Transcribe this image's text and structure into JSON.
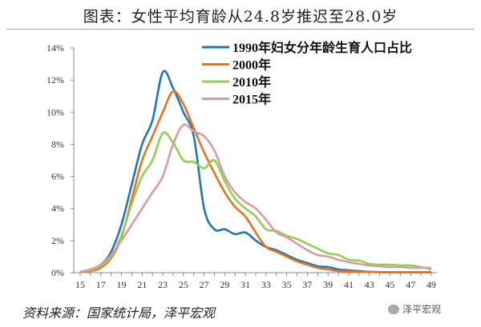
{
  "title": "图表：女性平均育龄从24.8岁推迟至28.0岁",
  "source": "资料来源：国家统计局，泽平宏观",
  "watermark": "泽平宏观",
  "chart_data": {
    "type": "line",
    "xlabel": "",
    "ylabel": "",
    "x": [
      15,
      16,
      17,
      18,
      19,
      20,
      21,
      22,
      23,
      24,
      25,
      26,
      27,
      28,
      29,
      30,
      31,
      32,
      33,
      34,
      35,
      36,
      37,
      38,
      39,
      40,
      41,
      42,
      43,
      44,
      45,
      46,
      47,
      48,
      49
    ],
    "x_tick_labels": [
      "15",
      "17",
      "19",
      "21",
      "23",
      "25",
      "27",
      "29",
      "31",
      "33",
      "35",
      "37",
      "39",
      "41",
      "43",
      "45",
      "47",
      "49"
    ],
    "y_tick_labels": [
      "0%",
      "2%",
      "4%",
      "6%",
      "8%",
      "10%",
      "12%",
      "14%"
    ],
    "ylim": [
      0,
      14
    ],
    "grid": false,
    "legend": "top-right",
    "series": [
      {
        "name": "1990年妇女分年龄生育人口占比",
        "color": "#1f77b4",
        "values": [
          0.05,
          0.2,
          0.5,
          1.3,
          3,
          5.5,
          8,
          9.5,
          12.5,
          11.5,
          10,
          8.5,
          4,
          2.7,
          2.7,
          2.4,
          2.5,
          2,
          1.6,
          1.4,
          1.1,
          0.8,
          0.6,
          0.4,
          0.35,
          0.2,
          0.15,
          0.1,
          0.05,
          0.03,
          0.02,
          0.02,
          0.02,
          0.02,
          0.02
        ]
      },
      {
        "name": "2000年",
        "color": "#e8731e",
        "values": [
          0.02,
          0.1,
          0.3,
          0.9,
          2.2,
          4.6,
          7,
          8.5,
          10,
          11.3,
          10.5,
          9,
          7.5,
          6.2,
          5,
          4.1,
          3.5,
          2.5,
          1.6,
          1.3,
          1,
          0.7,
          0.5,
          0.3,
          0.2,
          0.1,
          0.08,
          0.05,
          0.05,
          0.04,
          0.03,
          0.03,
          0.02,
          0.02,
          0.02
        ]
      },
      {
        "name": "2010年",
        "color": "#8fd14f",
        "values": [
          0.03,
          0.15,
          0.4,
          1,
          2.3,
          4.3,
          6,
          7,
          8.7,
          8.1,
          7,
          6.9,
          6.5,
          7,
          5.7,
          4.6,
          4,
          3.5,
          2.7,
          2.6,
          2.3,
          2.1,
          1.8,
          1.5,
          1.2,
          1.1,
          0.8,
          0.75,
          0.55,
          0.5,
          0.5,
          0.45,
          0.45,
          0.35,
          0.2
        ]
      },
      {
        "name": "2015年",
        "color": "#d99aa3",
        "values": [
          0.05,
          0.2,
          0.5,
          1.1,
          2,
          3,
          4,
          5,
          6,
          8,
          9.2,
          8.8,
          8.5,
          7.6,
          6,
          5,
          4.4,
          4,
          3.3,
          2.5,
          2.2,
          1.8,
          1.4,
          1.1,
          1,
          0.8,
          0.65,
          0.55,
          0.45,
          0.4,
          0.35,
          0.35,
          0.3,
          0.3,
          0.3
        ]
      }
    ]
  }
}
